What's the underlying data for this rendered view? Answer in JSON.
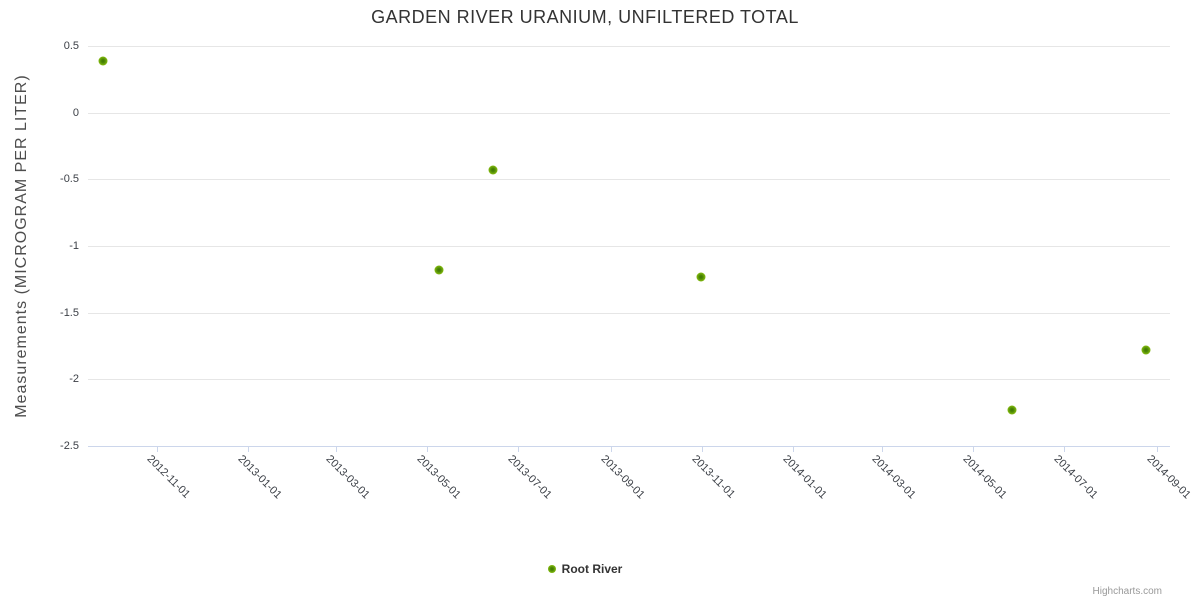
{
  "chart": {
    "title": "GARDEN RIVER URANIUM, UNFILTERED TOTAL",
    "credits": "Highcharts.com"
  },
  "legend": {
    "series_label": "Root River"
  },
  "chart_data": {
    "type": "scatter",
    "title": "GARDEN RIVER URANIUM, UNFILTERED TOTAL",
    "xlabel": "",
    "ylabel": "Measurements (MICROGRAM PER LITER)",
    "ylim": [
      -2.5,
      0.5
    ],
    "y_ticks": [
      0.5,
      0,
      -0.5,
      -1,
      -1.5,
      -2,
      -2.5
    ],
    "x_ticks": [
      "2012-11-01",
      "2013-01-01",
      "2013-03-01",
      "2013-05-01",
      "2013-07-01",
      "2013-09-01",
      "2013-11-01",
      "2014-01-01",
      "2014-03-01",
      "2014-05-01",
      "2014-07-01",
      "2014-09-01"
    ],
    "x_range": [
      "2012-09-16",
      "2014-09-10"
    ],
    "grid": "horizontal-only",
    "legend_position": "bottom-center",
    "series": [
      {
        "name": "Root River",
        "color": "#8bbc21",
        "points": [
          {
            "x": "2012-09-26",
            "y": 0.39
          },
          {
            "x": "2013-05-09",
            "y": -1.18
          },
          {
            "x": "2013-06-14",
            "y": -0.43
          },
          {
            "x": "2013-10-31",
            "y": -1.23
          },
          {
            "x": "2014-05-27",
            "y": -2.23
          },
          {
            "x": "2014-08-25",
            "y": -1.78
          }
        ]
      }
    ]
  },
  "colors": {
    "marker": "#8bbc21",
    "grid_line": "#e6e6e6",
    "axis_line": "#ccd6eb",
    "tick_label": "#3b3f46",
    "axis_title": "#4d4d4d",
    "title_text": "#333333",
    "credits_text": "#999999"
  }
}
